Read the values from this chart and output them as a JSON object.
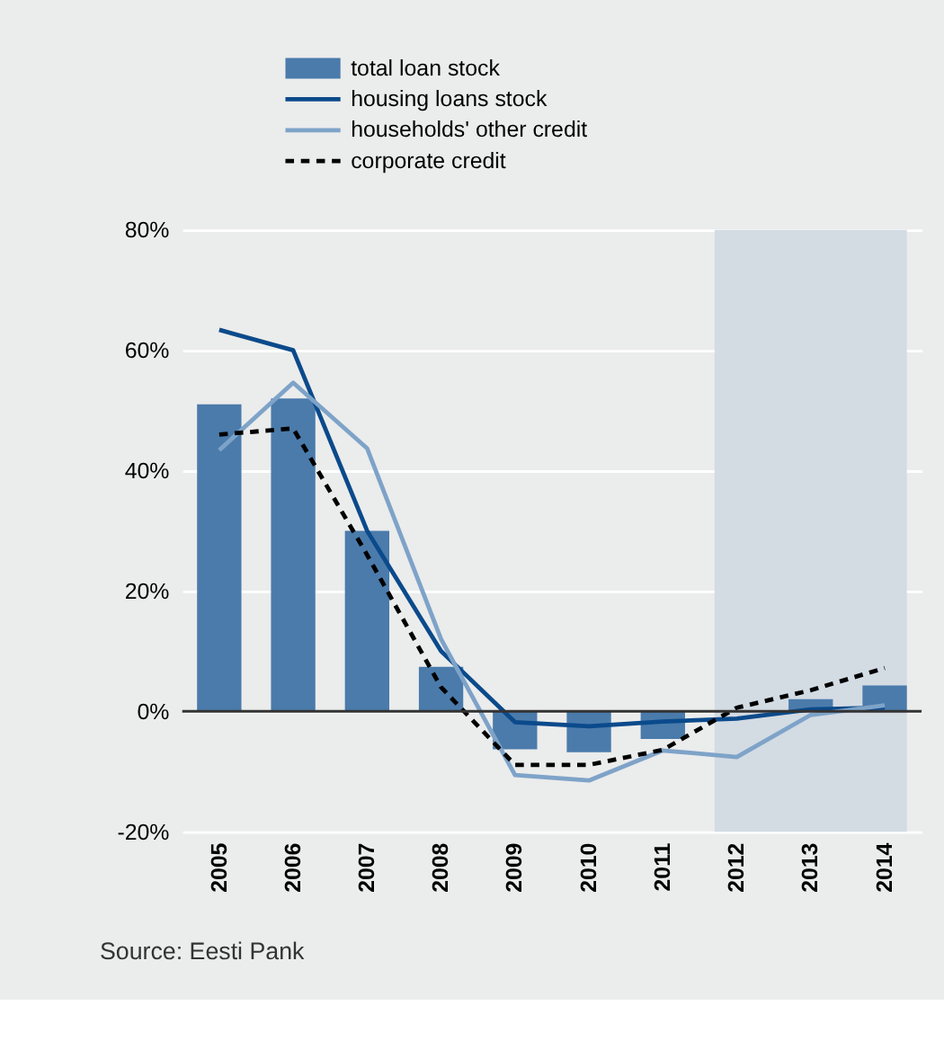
{
  "chart_data": {
    "type": "bar",
    "categories": [
      "2005",
      "2006",
      "2007",
      "2008",
      "2009",
      "2010",
      "2011",
      "2012",
      "2013",
      "2014"
    ],
    "series": [
      {
        "name": "total loan stock",
        "color": "#4a7bab",
        "values": [
          51,
          52,
          30,
          7.4,
          -6.3,
          -6.8,
          -4.6,
          null,
          2,
          4.3
        ]
      },
      {
        "name": "housing loans stock",
        "type": "line",
        "color": "#0b4a8b",
        "values": [
          63.4,
          60,
          30,
          10,
          -1.8,
          -2.5,
          -1.7,
          -1.2,
          0.3,
          0.6
        ]
      },
      {
        "name": "households' other credit",
        "type": "line",
        "color": "#7ea3c8",
        "values": [
          43.4,
          54.6,
          43.7,
          12,
          -10.6,
          -11.5,
          -6.5,
          -7.6,
          -0.6,
          1
        ]
      },
      {
        "name": "corporate credit",
        "type": "line",
        "color": "#000000",
        "line_style": "dashed",
        "values": [
          46,
          47,
          26,
          4,
          -8.9,
          -8.9,
          -6.4,
          0.6,
          3.5,
          7.2
        ]
      }
    ],
    "ylim": [
      -20,
      80
    ],
    "yticks": [
      {
        "value": -20,
        "label": "-20%"
      },
      {
        "value": 0,
        "label": "0%"
      },
      {
        "value": 20,
        "label": "20%"
      },
      {
        "value": 40,
        "label": "40%"
      },
      {
        "value": 60,
        "label": "60%"
      },
      {
        "value": 80,
        "label": "80%"
      }
    ],
    "bands": [
      {
        "axis": "x",
        "from": "2012",
        "to": "2014",
        "color": "#d3dbe3"
      }
    ],
    "ref_lines": [
      {
        "axis": "y",
        "value": 0,
        "color": "#333333"
      }
    ],
    "grid": "y",
    "legend": "top",
    "annotations": [
      "Source: Eesti Pank"
    ]
  }
}
